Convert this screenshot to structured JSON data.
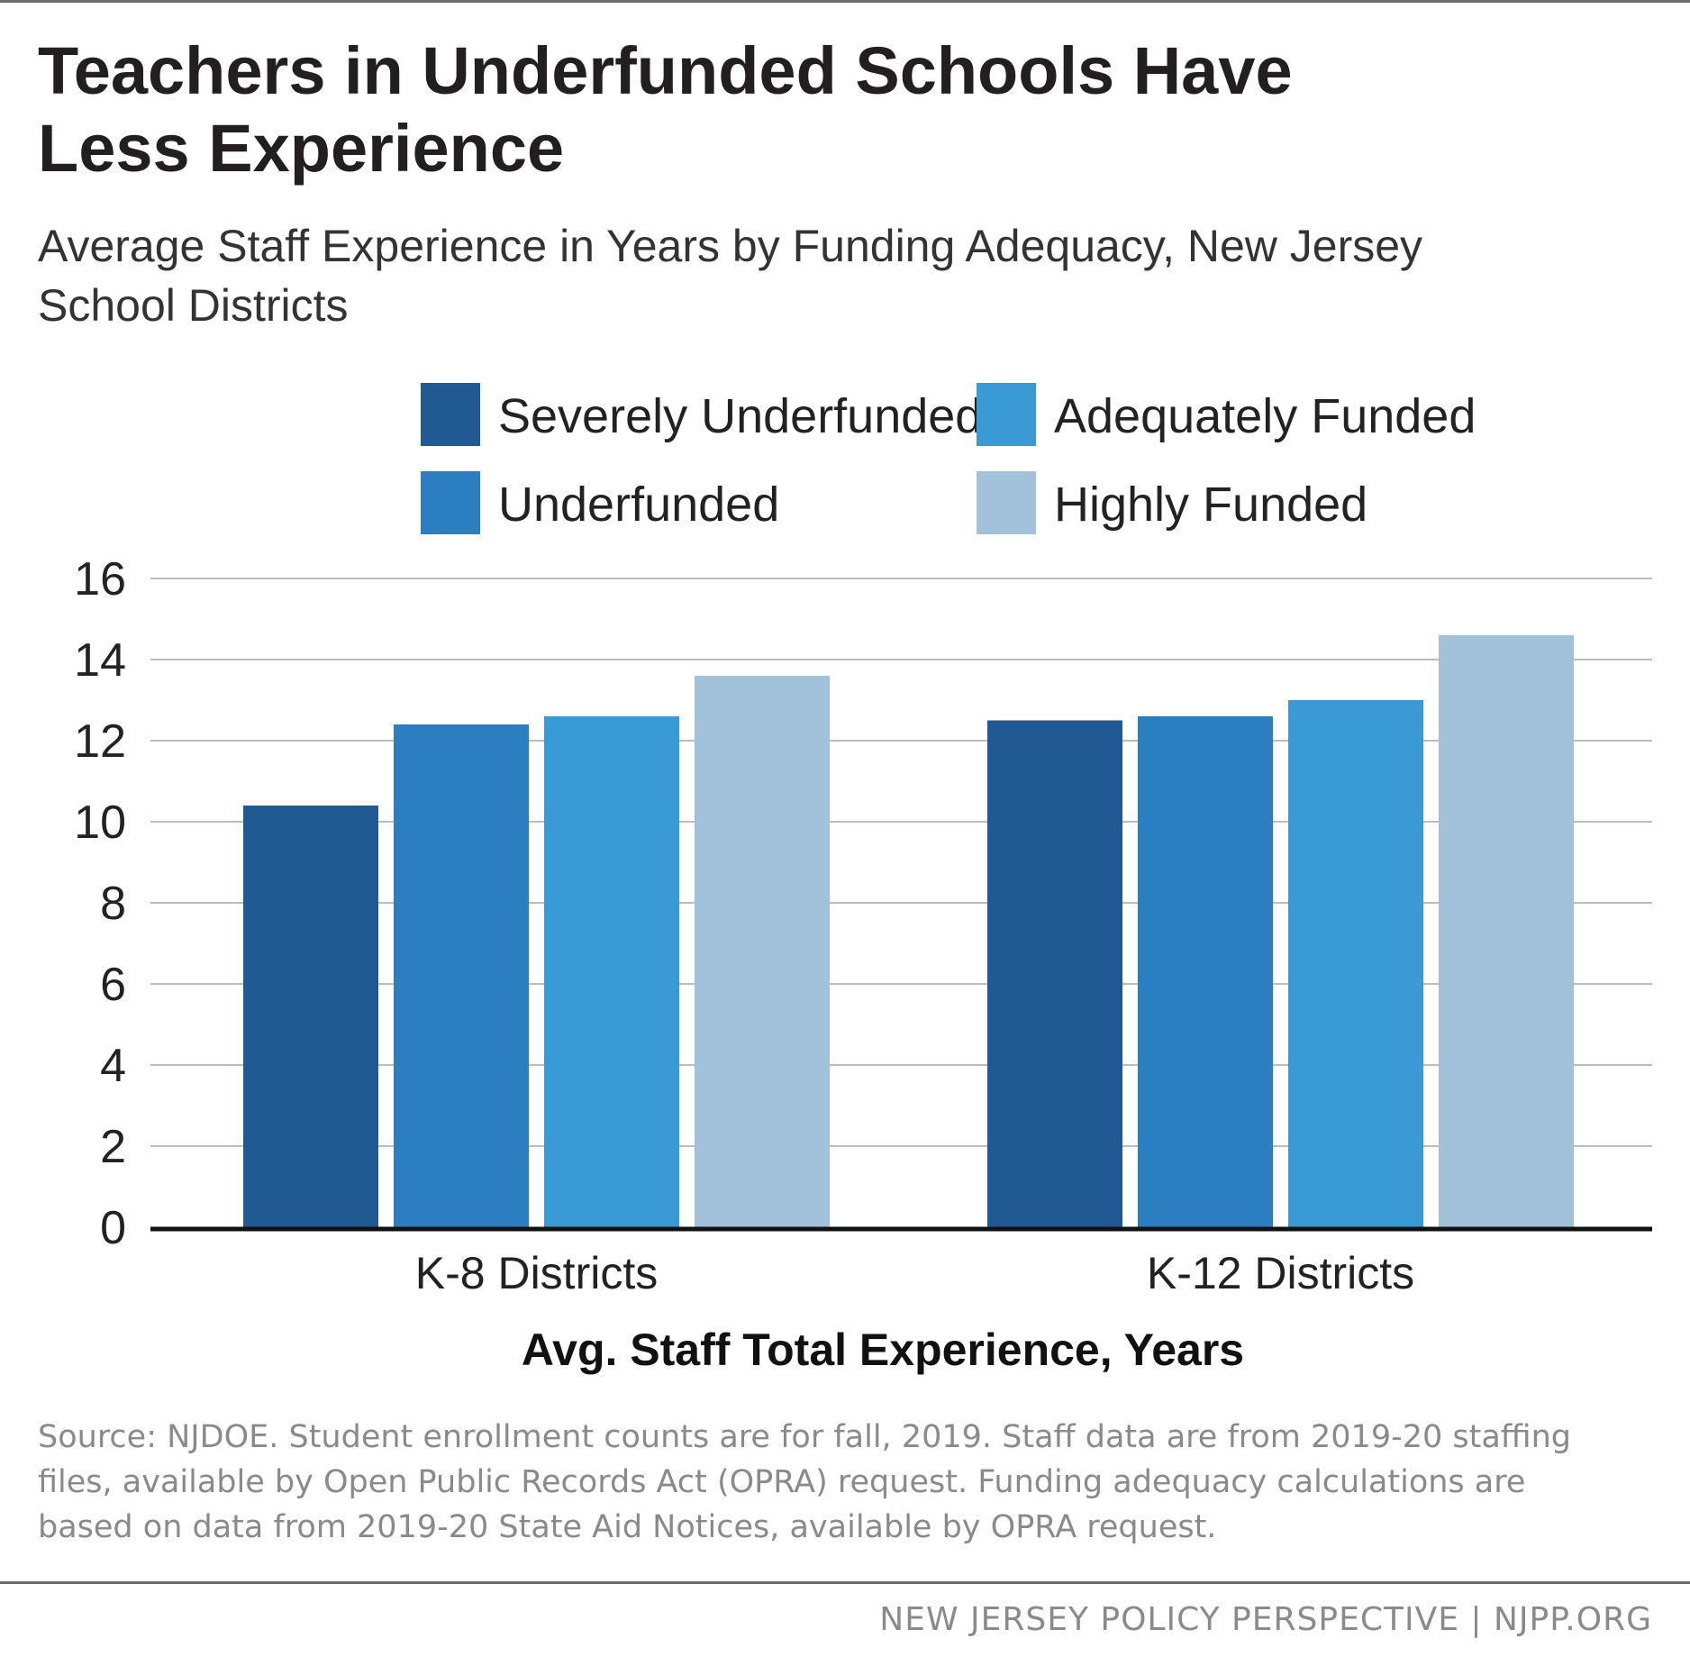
{
  "header": {
    "title_line1": "Teachers in Underfunded Schools Have",
    "title_line2": "Less Experience",
    "subtitle_line1": "Average Staff Experience in Years by Funding Adequacy, New Jersey",
    "subtitle_line2": "School Districts"
  },
  "chart_data": {
    "type": "bar",
    "title": "Teachers in Underfunded Schools Have Less Experience",
    "subtitle": "Average Staff Experience in Years by Funding Adequacy, New Jersey School Districts",
    "xlabel": "Avg. Staff Total Experience, Years",
    "ylabel": "",
    "categories": [
      "K-8 Districts",
      "K-12 Districts"
    ],
    "series": [
      {
        "name": "Severely Underfunded",
        "color": "#215a93",
        "values": [
          10.4,
          12.5
        ]
      },
      {
        "name": "Underfunded",
        "color": "#2b7fc0",
        "values": [
          12.4,
          12.6
        ]
      },
      {
        "name": "Adequately Funded",
        "color": "#3a9ad5",
        "values": [
          12.6,
          13.0
        ]
      },
      {
        "name": "Highly Funded",
        "color": "#a2c2dc",
        "values": [
          13.6,
          14.6
        ]
      }
    ],
    "ylim": [
      0,
      16
    ],
    "yticks": [
      "0",
      "2",
      "4",
      "6",
      "8",
      "10",
      "12",
      "14",
      "16"
    ],
    "grid": true,
    "legend_position": "top"
  },
  "source": {
    "line1": "Source: NJDOE. Student enrollment counts are for fall, 2019. Staff data are from 2019-20 staffing",
    "line2": "files, available by Open Public Records Act (OPRA) request. Funding adequacy calculations are",
    "line3": "based on data from 2019-20 State Aid Notices, available by OPRA request."
  },
  "footer": {
    "credit": "NEW JERSEY POLICY PERSPECTIVE | NJPP.ORG"
  }
}
